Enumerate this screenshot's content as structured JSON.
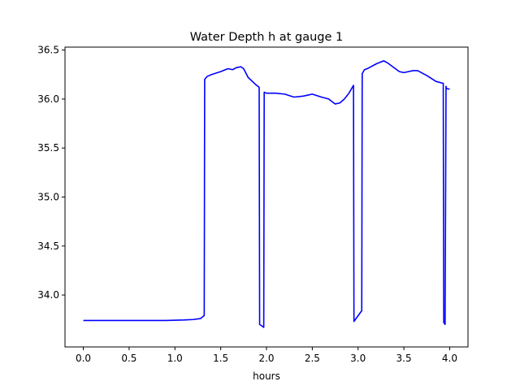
{
  "chart_data": {
    "type": "line",
    "title": "Water Depth h at gauge 1",
    "xlabel": "hours",
    "ylabel": "",
    "xlim": [
      -0.2,
      4.2
    ],
    "ylim": [
      33.47,
      36.53
    ],
    "xticks": [
      0.0,
      0.5,
      1.0,
      1.5,
      2.0,
      2.5,
      3.0,
      3.5,
      4.0
    ],
    "xtick_labels": [
      "0.0",
      "0.5",
      "1.0",
      "1.5",
      "2.0",
      "2.5",
      "3.0",
      "3.5",
      "4.0"
    ],
    "yticks": [
      34.0,
      34.5,
      35.0,
      35.5,
      36.0,
      36.5
    ],
    "ytick_labels": [
      "34.0",
      "34.5",
      "35.0",
      "35.5",
      "36.0",
      "36.5"
    ],
    "grid": false,
    "series": [
      {
        "color": "#0000ff",
        "x": [
          0.0,
          0.5,
          0.9,
          1.1,
          1.2,
          1.28,
          1.32,
          1.325,
          1.35,
          1.4,
          1.5,
          1.58,
          1.63,
          1.67,
          1.72,
          1.75,
          1.8,
          1.88,
          1.92,
          1.925,
          1.97,
          1.975,
          2.0,
          2.1,
          2.2,
          2.3,
          2.4,
          2.5,
          2.6,
          2.68,
          2.72,
          2.75,
          2.8,
          2.85,
          2.9,
          2.95,
          2.955,
          3.04,
          3.045,
          3.07,
          3.1,
          3.2,
          3.28,
          3.32,
          3.45,
          3.5,
          3.55,
          3.6,
          3.65,
          3.75,
          3.85,
          3.93,
          3.935,
          3.95,
          3.96,
          3.965,
          4.0
        ],
        "y": [
          33.74,
          33.74,
          33.74,
          33.745,
          33.75,
          33.76,
          33.79,
          36.2,
          36.23,
          36.25,
          36.28,
          36.31,
          36.3,
          36.32,
          36.33,
          36.31,
          36.22,
          36.15,
          36.12,
          33.7,
          33.67,
          36.07,
          36.06,
          36.06,
          36.05,
          36.02,
          36.03,
          36.05,
          36.02,
          36.0,
          35.97,
          35.95,
          35.96,
          36.0,
          36.06,
          36.14,
          33.73,
          33.84,
          36.26,
          36.3,
          36.31,
          36.36,
          36.39,
          36.37,
          36.28,
          36.27,
          36.28,
          36.29,
          36.29,
          36.24,
          36.18,
          36.16,
          33.72,
          33.7,
          36.13,
          36.11,
          36.1
        ]
      }
    ]
  }
}
